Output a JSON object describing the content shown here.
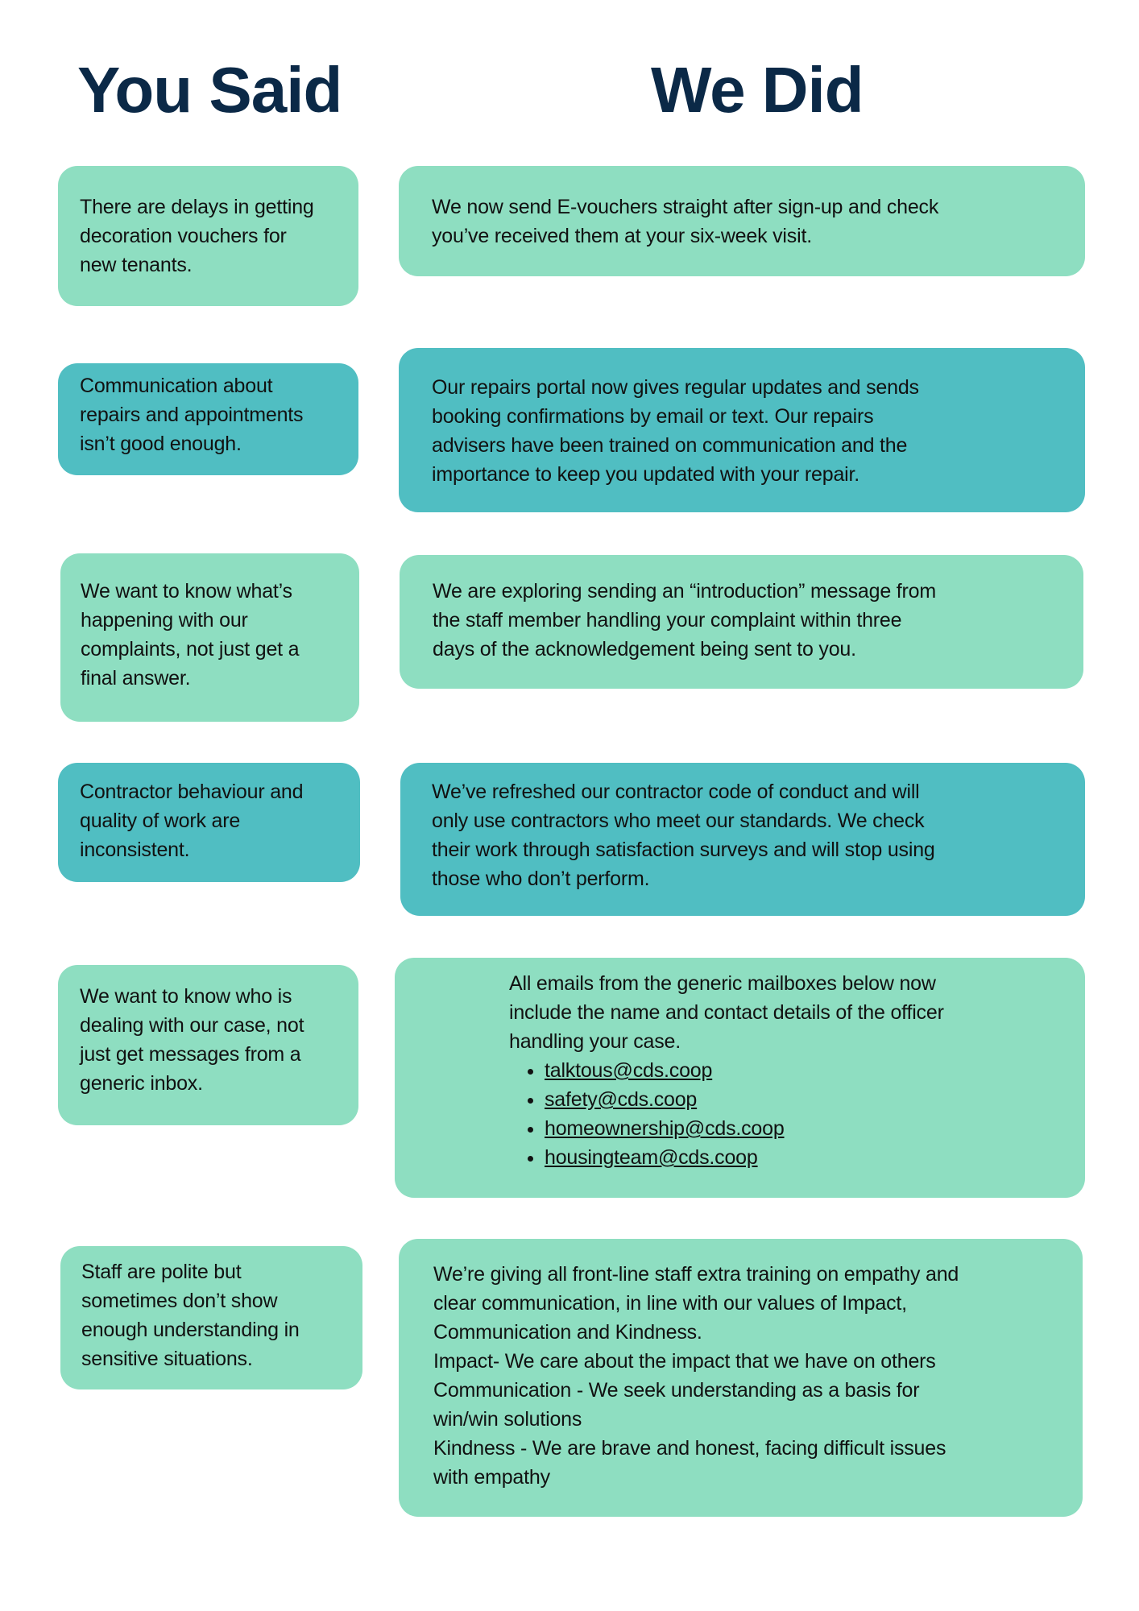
{
  "headers": {
    "you_said": "You Said",
    "we_did": "We Did"
  },
  "colors": {
    "title": "#0b2947",
    "light_box": "#8edec1",
    "teal_box": "#50bec2"
  },
  "rows": [
    {
      "said": "There are delays in getting\ndecoration vouchers for\nnew tenants.",
      "did": "We now send E-vouchers straight after sign-up and check\nyou’ve received them at your six-week visit."
    },
    {
      "said": "Communication about\nrepairs and appointments\nisn’t good enough.",
      "did": "Our repairs portal now gives regular updates and sends\nbooking confirmations by email or text. Our repairs\nadvisers have been trained on communication and the\nimportance to keep you updated with your repair."
    },
    {
      "said": "We want to know what’s\nhappening with our\ncomplaints, not just get a\nfinal answer.",
      "did": "We are exploring sending an “introduction” message from\nthe staff member handling your complaint within three\ndays of the acknowledgement being sent to you."
    },
    {
      "said": "Contractor behaviour and\nquality of work are\ninconsistent.",
      "did": "We’ve refreshed our contractor code of conduct and will\nonly use contractors who meet our standards. We check\ntheir work through satisfaction surveys and will stop using\nthose who don’t perform."
    },
    {
      "said": "We want to know who is\ndealing with our case, not\njust get messages from a\ngeneric inbox.",
      "did": "All emails from the generic mailboxes below now\ninclude the name and contact details of the officer\nhandling your case.",
      "emails": [
        "talktous@cds.coop",
        "safety@cds.coop",
        "homeownership@cds.coop",
        "housingteam@cds.coop"
      ]
    },
    {
      "said": "Staff are polite but\nsometimes don’t show\nenough understanding in\nsensitive situations.",
      "did": "We’re giving all front-line staff extra training on empathy and\nclear communication, in line with our values of Impact,\nCommunication and Kindness.\nImpact- We care about the impact that we have on others\nCommunication - We seek understanding as a basis for\nwin/win solutions\nKindness - We are brave and honest, facing difficult issues\nwith empathy"
    }
  ]
}
